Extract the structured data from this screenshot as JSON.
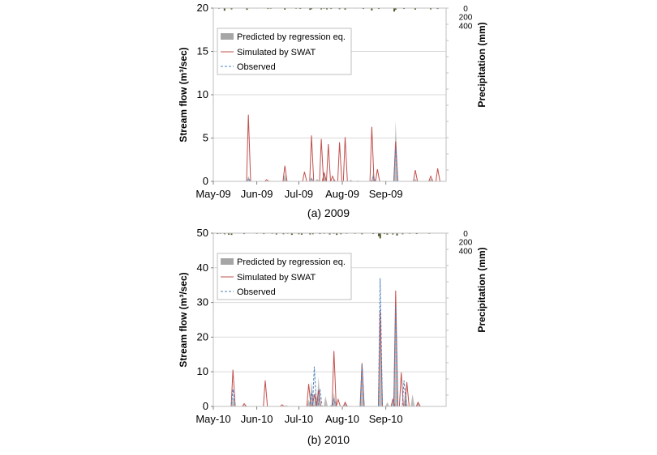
{
  "charts": [
    {
      "caption": "(a) 2009",
      "ylabel": "Stream flow (m³/sec)",
      "y2label": "Precipitation (mm)",
      "ylim": [
        0,
        20
      ],
      "yticks": [
        "0",
        "5",
        "10",
        "15",
        "20"
      ],
      "y2ticks": [
        "0",
        "200",
        "400"
      ],
      "xticks": [
        "May-09",
        "Jun-09",
        "Jul-09",
        "Aug-09",
        "Sep-09"
      ],
      "legend": {
        "predicted": "Predicted by regression eq.",
        "swat": "Simulated by SWAT",
        "observed": "Observed"
      }
    },
    {
      "caption": "(b) 2010",
      "ylabel": "Stream flow (m³/sec)",
      "y2label": "Precipitation (mm)",
      "ylim": [
        0,
        50
      ],
      "yticks": [
        "0",
        "10",
        "20",
        "30",
        "40",
        "50"
      ],
      "y2ticks": [
        "0",
        "200",
        "400"
      ],
      "xticks": [
        "May-10",
        "Jun-10",
        "Jul-10",
        "Aug-10",
        "Sep-10"
      ],
      "legend": {
        "predicted": "Predicted by regression eq.",
        "swat": "Simulated by SWAT",
        "observed": "Observed"
      }
    }
  ],
  "chart_data": [
    {
      "type": "area",
      "x_unit": "day from May 1",
      "ylim": [
        0,
        20
      ],
      "y2lim": [
        0,
        1000
      ],
      "y2_inverted": true,
      "series": [
        {
          "name": "Predicted by regression eq.",
          "type": "area",
          "color": "#a6a6a6",
          "peaks": [
            [
              25,
              0.6
            ],
            [
              51,
              0.8
            ],
            [
              70,
              0.5
            ],
            [
              74,
              0.3
            ],
            [
              79,
              1.2
            ],
            [
              86,
              0.3
            ],
            [
              98,
              0.2
            ],
            [
              103,
              0.1
            ],
            [
              114,
              1.0
            ],
            [
              130,
              7.0
            ],
            [
              144,
              0.3
            ],
            [
              155,
              0.3
            ]
          ]
        },
        {
          "name": "Simulated by SWAT",
          "type": "line",
          "color": "#c0504d",
          "peaks": [
            [
              25,
              7.7
            ],
            [
              38,
              0.2
            ],
            [
              51,
              1.8
            ],
            [
              65,
              1.1
            ],
            [
              70,
              5.3
            ],
            [
              77,
              4.9
            ],
            [
              79,
              1.0
            ],
            [
              82,
              4.3
            ],
            [
              85,
              0.6
            ],
            [
              90,
              4.5
            ],
            [
              94,
              5.1
            ],
            [
              113,
              6.3
            ],
            [
              117,
              1.4
            ],
            [
              130,
              4.6
            ],
            [
              144,
              1.3
            ],
            [
              155,
              0.6
            ],
            [
              160,
              1.5
            ]
          ]
        },
        {
          "name": "Observed",
          "type": "line",
          "color": "#4f81bd",
          "peaks": [
            [
              25,
              0.3
            ],
            [
              70,
              0.3
            ],
            [
              114,
              0.5
            ],
            [
              130,
              3.8
            ]
          ]
        }
      ],
      "precipitation": [
        [
          4,
          15
        ],
        [
          8,
          60
        ],
        [
          13,
          30
        ],
        [
          24,
          40
        ],
        [
          31,
          10
        ],
        [
          39,
          20
        ],
        [
          41,
          15
        ],
        [
          46,
          10
        ],
        [
          51,
          35
        ],
        [
          59,
          15
        ],
        [
          62,
          20
        ],
        [
          69,
          40
        ],
        [
          70,
          25
        ],
        [
          77,
          30
        ],
        [
          79,
          15
        ],
        [
          81,
          30
        ],
        [
          84,
          20
        ],
        [
          90,
          25
        ],
        [
          94,
          35
        ],
        [
          102,
          10
        ],
        [
          107,
          20
        ],
        [
          113,
          55
        ],
        [
          118,
          20
        ],
        [
          129,
          80
        ],
        [
          130,
          40
        ],
        [
          136,
          20
        ],
        [
          144,
          35
        ],
        [
          150,
          10
        ],
        [
          155,
          30
        ],
        [
          160,
          20
        ]
      ]
    },
    {
      "type": "area",
      "x_unit": "day from May 1",
      "ylim": [
        0,
        50
      ],
      "y2lim": [
        0,
        1000
      ],
      "y2_inverted": true,
      "series": [
        {
          "name": "Predicted by regression eq.",
          "type": "area",
          "color": "#a6a6a6",
          "peaks": [
            [
              14,
              3.0
            ],
            [
              22,
              0.4
            ],
            [
              52,
              0.4
            ],
            [
              68,
              2.0
            ],
            [
              70,
              7.3
            ],
            [
              73,
              5.0
            ],
            [
              75,
              8.5
            ],
            [
              80,
              3.0
            ],
            [
              84,
              0.5
            ],
            [
              86,
              4.0
            ],
            [
              94,
              1.0
            ],
            [
              106,
              12.3
            ],
            [
              119,
              31.0
            ],
            [
              124,
              1.2
            ],
            [
              128,
              2.5
            ],
            [
              130,
              29.0
            ],
            [
              137,
              5.6
            ],
            [
              142,
              3.5
            ],
            [
              146,
              1.0
            ]
          ]
        },
        {
          "name": "Simulated by SWAT",
          "type": "line",
          "color": "#c0504d",
          "peaks": [
            [
              14,
              10.6
            ],
            [
              22,
              0.8
            ],
            [
              37,
              7.5
            ],
            [
              49,
              0.5
            ],
            [
              68,
              6.5
            ],
            [
              72,
              3.5
            ],
            [
              75,
              4.7
            ],
            [
              86,
              16.0
            ],
            [
              89,
              2.0
            ],
            [
              94,
              1.2
            ],
            [
              106,
              12.5
            ],
            [
              119,
              27.5
            ],
            [
              128,
              2.0
            ],
            [
              130,
              33.4
            ],
            [
              134,
              9.8
            ],
            [
              138,
              7.0
            ],
            [
              146,
              1.2
            ]
          ]
        },
        {
          "name": "Observed",
          "type": "line",
          "color": "#4f81bd",
          "peaks": [
            [
              14,
              5.0
            ],
            [
              70,
              4.0
            ],
            [
              72,
              11.5
            ],
            [
              76,
              5.0
            ],
            [
              86,
              2.0
            ],
            [
              106,
              12.3
            ],
            [
              119,
              37.0
            ],
            [
              130,
              29.0
            ],
            [
              136,
              7.5
            ]
          ]
        }
      ],
      "precipitation": [
        [
          3,
          20
        ],
        [
          5,
          15
        ],
        [
          8,
          25
        ],
        [
          11,
          35
        ],
        [
          13,
          40
        ],
        [
          18,
          10
        ],
        [
          22,
          20
        ],
        [
          31,
          15
        ],
        [
          36,
          20
        ],
        [
          42,
          15
        ],
        [
          45,
          30
        ],
        [
          50,
          25
        ],
        [
          53,
          15
        ],
        [
          56,
          40
        ],
        [
          61,
          25
        ],
        [
          63,
          35
        ],
        [
          66,
          10
        ],
        [
          69,
          30
        ],
        [
          71,
          25
        ],
        [
          76,
          20
        ],
        [
          79,
          15
        ],
        [
          83,
          30
        ],
        [
          86,
          15
        ],
        [
          88,
          40
        ],
        [
          91,
          25
        ],
        [
          95,
          15
        ],
        [
          101,
          15
        ],
        [
          106,
          25
        ],
        [
          114,
          20
        ],
        [
          118,
          70
        ],
        [
          119,
          120
        ],
        [
          122,
          20
        ],
        [
          124,
          35
        ],
        [
          128,
          30
        ],
        [
          131,
          55
        ],
        [
          135,
          25
        ],
        [
          140,
          15
        ],
        [
          145,
          20
        ],
        [
          150,
          10
        ],
        [
          154,
          15
        ]
      ]
    }
  ]
}
